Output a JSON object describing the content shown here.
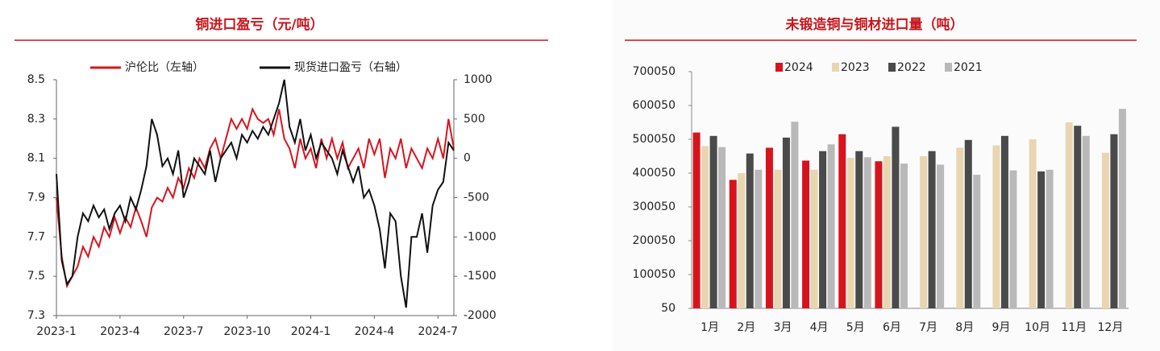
{
  "chart_data": [
    {
      "type": "line",
      "title": "铜进口盈亏（元/吨）",
      "categories": [
        "2023-1",
        null,
        null,
        null,
        null,
        null,
        null,
        null,
        null,
        null,
        null,
        null,
        "2023-4",
        null,
        null,
        null,
        null,
        null,
        null,
        null,
        null,
        null,
        null,
        null,
        "2023-7",
        null,
        null,
        null,
        null,
        null,
        null,
        null,
        null,
        null,
        null,
        null,
        "2023-10",
        null,
        null,
        null,
        null,
        null,
        null,
        null,
        null,
        null,
        null,
        null,
        "2024-1",
        null,
        null,
        null,
        null,
        null,
        null,
        null,
        null,
        null,
        null,
        null,
        "2024-4",
        null,
        null,
        null,
        null,
        null,
        null,
        null,
        null,
        null,
        null,
        null,
        "2024-7",
        null,
        null,
        null
      ],
      "ylim": [
        7.3,
        8.5
      ],
      "yticks": [
        7.3,
        7.5,
        7.7,
        7.9,
        8.1,
        8.3,
        8.5
      ],
      "y2lim": [
        -2000,
        1000
      ],
      "y2ticks": [
        -2000,
        -1500,
        -1000,
        -500,
        0,
        500,
        1000
      ],
      "series": [
        {
          "name": "沪伦比（左轴）",
          "color": "#d7141d",
          "values": [
            7.9,
            7.6,
            7.45,
            7.5,
            7.55,
            7.65,
            7.6,
            7.7,
            7.65,
            7.75,
            7.7,
            7.8,
            7.72,
            7.8,
            7.75,
            7.85,
            7.78,
            7.7,
            7.85,
            7.9,
            7.88,
            7.95,
            7.9,
            8.0,
            7.95,
            8.05,
            8.0,
            8.1,
            8.05,
            8.15,
            8.2,
            8.1,
            8.2,
            8.3,
            8.25,
            8.3,
            8.25,
            8.35,
            8.3,
            8.28,
            8.3,
            8.22,
            8.35,
            8.2,
            8.15,
            8.05,
            8.2,
            8.1,
            8.15,
            8.05,
            8.2,
            8.1,
            8.2,
            8.1,
            8.18,
            8.05,
            8.1,
            8.15,
            8.05,
            8.2,
            8.12,
            8.2,
            8.0,
            8.15,
            8.1,
            8.2,
            8.05,
            8.15,
            8.1,
            8.05,
            8.15,
            8.1,
            8.2,
            8.1,
            8.3,
            8.15
          ]
        },
        {
          "name": "现货进口盈亏（右轴）",
          "color": "#111111",
          "axis": "y2",
          "values": [
            -200,
            -1300,
            -1600,
            -1500,
            -1000,
            -700,
            -800,
            -600,
            -750,
            -650,
            -900,
            -700,
            -600,
            -800,
            -500,
            -650,
            -400,
            -100,
            500,
            300,
            -100,
            0,
            -200,
            100,
            -500,
            -300,
            0,
            -100,
            -200,
            100,
            -300,
            0,
            100,
            200,
            0,
            300,
            200,
            350,
            250,
            400,
            300,
            500,
            700,
            1000,
            400,
            200,
            500,
            100,
            300,
            0,
            200,
            100,
            0,
            -200,
            100,
            -100,
            -300,
            -100,
            -500,
            -400,
            -600,
            -900,
            -1400,
            -700,
            -800,
            -1500,
            -1900,
            -1000,
            -1000,
            -700,
            -1200,
            -600,
            -400,
            -300,
            200,
            100
          ]
        }
      ]
    },
    {
      "type": "bar",
      "title": "未锻造铜与铜材进口量（吨）",
      "categories": [
        "1月",
        "2月",
        "3月",
        "4月",
        "5月",
        "6月",
        "7月",
        "8月",
        "9月",
        "10月",
        "11月",
        "12月"
      ],
      "ylim": [
        50,
        700050
      ],
      "yticks": [
        50,
        100050,
        200050,
        300050,
        400050,
        500050,
        600050,
        700050
      ],
      "series": [
        {
          "name": "2024",
          "color": "#d7141d",
          "values": [
            520000,
            380000,
            475000,
            437000,
            515000,
            435000,
            null,
            null,
            null,
            null,
            null,
            null
          ]
        },
        {
          "name": "2023",
          "color": "#e9d6b1",
          "values": [
            480000,
            400000,
            410000,
            410000,
            445000,
            450000,
            450000,
            475000,
            482000,
            500000,
            550000,
            460000
          ]
        },
        {
          "name": "2022",
          "color": "#4a4a4a",
          "values": [
            510000,
            458000,
            505000,
            465000,
            465000,
            537000,
            465000,
            498000,
            510000,
            405000,
            540000,
            515000
          ]
        },
        {
          "name": "2021",
          "color": "#b9b9b9",
          "values": [
            477000,
            410000,
            552000,
            485000,
            447000,
            428000,
            425000,
            395000,
            408000,
            410000,
            510000,
            590000
          ]
        }
      ]
    }
  ]
}
